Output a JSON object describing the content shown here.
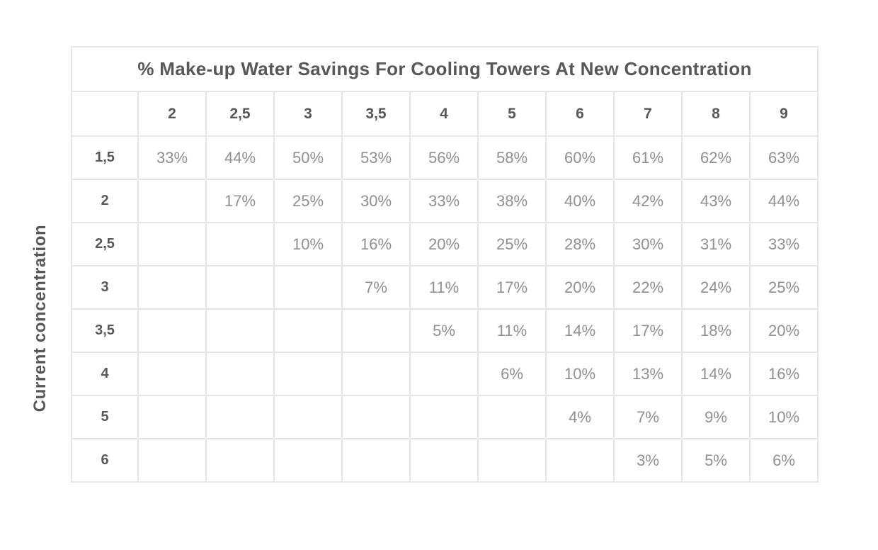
{
  "colors": {
    "header_text": "#57585a",
    "value_text": "#8e9091",
    "grid_line": "#e6e6e6",
    "background": "#ffffff"
  },
  "chart_data": {
    "type": "table",
    "title": "% Make-up Water Savings For Cooling Towers At New Concentration",
    "y_axis_label": "Current concentration",
    "col_headers": [
      "2",
      "2,5",
      "3",
      "3,5",
      "4",
      "5",
      "6",
      "7",
      "8",
      "9"
    ],
    "rows": [
      {
        "header": "1,5",
        "cells": [
          "33%",
          "44%",
          "50%",
          "53%",
          "56%",
          "58%",
          "60%",
          "61%",
          "62%",
          "63%"
        ]
      },
      {
        "header": "2",
        "cells": [
          "",
          "17%",
          "25%",
          "30%",
          "33%",
          "38%",
          "40%",
          "42%",
          "43%",
          "44%"
        ]
      },
      {
        "header": "2,5",
        "cells": [
          "",
          "",
          "10%",
          "16%",
          "20%",
          "25%",
          "28%",
          "30%",
          "31%",
          "33%"
        ]
      },
      {
        "header": "3",
        "cells": [
          "",
          "",
          "",
          "7%",
          "11%",
          "17%",
          "20%",
          "22%",
          "24%",
          "25%"
        ]
      },
      {
        "header": "3,5",
        "cells": [
          "",
          "",
          "",
          "",
          "5%",
          "11%",
          "14%",
          "17%",
          "18%",
          "20%"
        ]
      },
      {
        "header": "4",
        "cells": [
          "",
          "",
          "",
          "",
          "",
          "6%",
          "10%",
          "13%",
          "14%",
          "16%"
        ]
      },
      {
        "header": "5",
        "cells": [
          "",
          "",
          "",
          "",
          "",
          "",
          "4%",
          "7%",
          "9%",
          "10%"
        ]
      },
      {
        "header": "6",
        "cells": [
          "",
          "",
          "",
          "",
          "",
          "",
          "",
          "3%",
          "5%",
          "6%"
        ]
      }
    ]
  }
}
